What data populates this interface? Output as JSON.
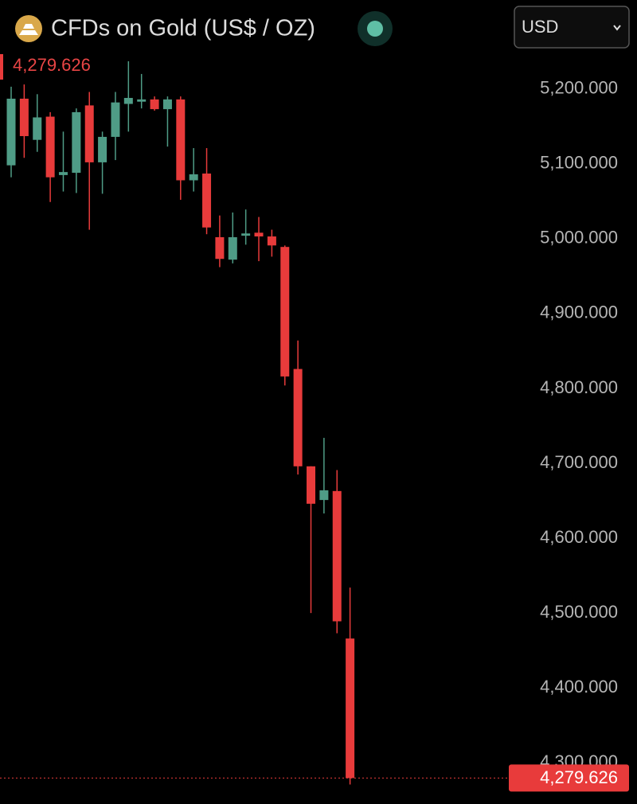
{
  "header": {
    "title": "CFDs on Gold (US$ / OZ)",
    "currency": "USD"
  },
  "chart_data": {
    "type": "candlestick",
    "up_color": "#4f9c86",
    "down_color": "#e83b3b",
    "ylim": [
      4245,
      5255
    ],
    "yticks": [
      {
        "value": 4300,
        "label": "4,300.000"
      },
      {
        "value": 4400,
        "label": "4,400.000"
      },
      {
        "value": 4500,
        "label": "4,500.000"
      },
      {
        "value": 4600,
        "label": "4,600.000"
      },
      {
        "value": 4700,
        "label": "4,700.000"
      },
      {
        "value": 4800,
        "label": "4,800.000"
      },
      {
        "value": 4900,
        "label": "4,900.000"
      },
      {
        "value": 5000,
        "label": "5,000.000"
      },
      {
        "value": 5100,
        "label": "5,100.000"
      },
      {
        "value": 5200,
        "label": "5,200.000"
      }
    ],
    "last_price": 4279.626,
    "last_price_label": "4,279.626",
    "open": [
      5098,
      5187,
      5132,
      5163,
      5085,
      5088,
      5178,
      5102,
      5136,
      5180,
      5183,
      5186,
      5173,
      5186,
      5078,
      5087,
      5002,
      4972,
      5004,
      5008,
      5003,
      4989,
      4826,
      4696,
      4651,
      4663,
      4466
    ],
    "high": [
      5203,
      5206,
      5193,
      5169,
      5143,
      5174,
      5196,
      5143,
      5196,
      5237,
      5220,
      5190,
      5190,
      5190,
      5121,
      5121,
      5031,
      5035,
      5039,
      5029,
      5012,
      4991,
      4864,
      4696,
      4734,
      4691,
      4534
    ],
    "low": [
      5082,
      5108,
      5116,
      5049,
      5063,
      5061,
      5012,
      5060,
      5105,
      5143,
      5174,
      5171,
      5123,
      5052,
      5063,
      5006,
      4962,
      4967,
      4992,
      4970,
      4976,
      4804,
      4685,
      4500,
      4633,
      4473,
      4271
    ],
    "close": [
      5187,
      5137,
      5162,
      5082,
      5089,
      5169,
      5102,
      5136,
      5182,
      5188,
      5186,
      5173,
      5186,
      5078,
      5086,
      5015,
      4973,
      5002,
      5007,
      5003,
      4991,
      4816,
      4696,
      4646,
      4664,
      4489,
      4279.626
    ]
  }
}
